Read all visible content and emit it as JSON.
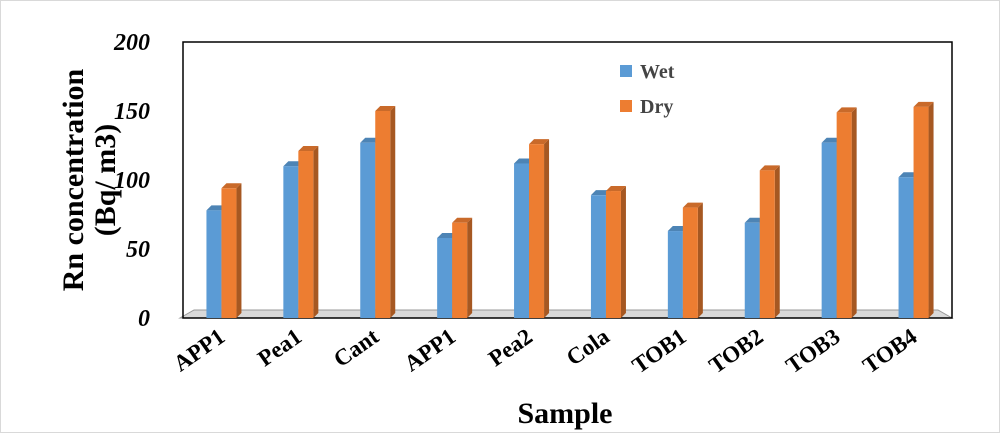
{
  "chart_data": {
    "type": "bar",
    "categories": [
      "APP1",
      "Pea1",
      "Cant",
      "APP1",
      "Pea2",
      "Cola",
      "TOB1",
      "TOB2",
      "TOB3",
      "TOB4"
    ],
    "series": [
      {
        "name": "Wet",
        "values": [
          78,
          110,
          127,
          58,
          112,
          89,
          63,
          69,
          127,
          102
        ],
        "color": "#5B9BD5"
      },
      {
        "name": "Dry",
        "values": [
          94,
          121,
          150,
          69,
          126,
          92,
          80,
          107,
          149,
          153
        ],
        "color": "#ED7D31"
      }
    ],
    "xlabel": "Sample",
    "ylabel_line1": "Rn concentration",
    "ylabel_line2": "(Bq/ m3)",
    "ylim": [
      0,
      200
    ],
    "yticks": [
      "0",
      "50",
      "100",
      "150",
      "200"
    ],
    "legend_position": "top-right inside plot",
    "grid": false
  }
}
